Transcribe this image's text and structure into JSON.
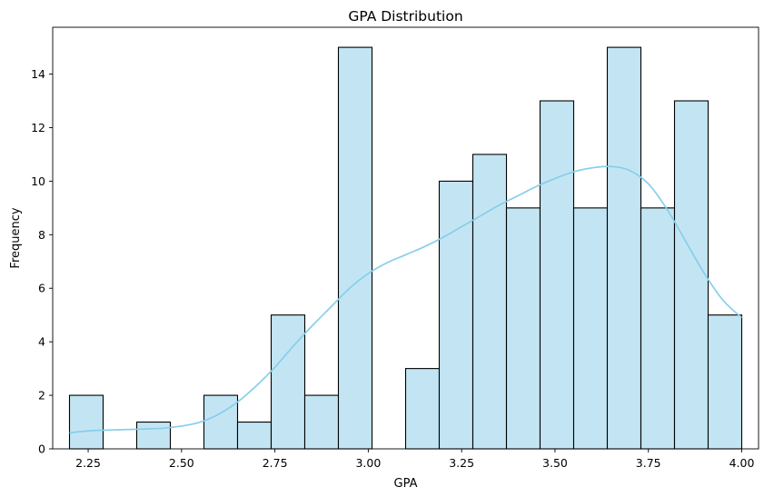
{
  "chart_data": {
    "type": "bar",
    "title": "GPA Distribution",
    "xlabel": "GPA",
    "ylabel": "Frequency",
    "xlim": [
      2.155,
      4.045
    ],
    "ylim": [
      0,
      15.75
    ],
    "grid": false,
    "legend": "none",
    "bar_color": "#c3e5f3",
    "edge_color": "#000000",
    "kde_color": "#87ceeb",
    "x_ticks": [
      {
        "value": 2.25,
        "label": "2.25"
      },
      {
        "value": 2.5,
        "label": "2.50"
      },
      {
        "value": 2.75,
        "label": "2.75"
      },
      {
        "value": 3.0,
        "label": "3.00"
      },
      {
        "value": 3.25,
        "label": "3.25"
      },
      {
        "value": 3.5,
        "label": "3.50"
      },
      {
        "value": 3.75,
        "label": "3.75"
      },
      {
        "value": 4.0,
        "label": "4.00"
      }
    ],
    "y_ticks": [
      {
        "value": 0,
        "label": "0"
      },
      {
        "value": 2,
        "label": "2"
      },
      {
        "value": 4,
        "label": "4"
      },
      {
        "value": 6,
        "label": "6"
      },
      {
        "value": 8,
        "label": "8"
      },
      {
        "value": 10,
        "label": "10"
      },
      {
        "value": 12,
        "label": "12"
      },
      {
        "value": 14,
        "label": "14"
      }
    ],
    "bins": [
      {
        "x0": 2.2,
        "x1": 2.29,
        "count": 2
      },
      {
        "x0": 2.29,
        "x1": 2.38,
        "count": 0
      },
      {
        "x0": 2.38,
        "x1": 2.47,
        "count": 1
      },
      {
        "x0": 2.47,
        "x1": 2.56,
        "count": 0
      },
      {
        "x0": 2.56,
        "x1": 2.65,
        "count": 2
      },
      {
        "x0": 2.65,
        "x1": 2.74,
        "count": 1
      },
      {
        "x0": 2.74,
        "x1": 2.83,
        "count": 5
      },
      {
        "x0": 2.83,
        "x1": 2.92,
        "count": 2
      },
      {
        "x0": 2.92,
        "x1": 3.01,
        "count": 15
      },
      {
        "x0": 3.01,
        "x1": 3.1,
        "count": 0
      },
      {
        "x0": 3.1,
        "x1": 3.19,
        "count": 3
      },
      {
        "x0": 3.19,
        "x1": 3.28,
        "count": 10
      },
      {
        "x0": 3.28,
        "x1": 3.37,
        "count": 11
      },
      {
        "x0": 3.37,
        "x1": 3.46,
        "count": 9
      },
      {
        "x0": 3.46,
        "x1": 3.55,
        "count": 13
      },
      {
        "x0": 3.55,
        "x1": 3.64,
        "count": 9
      },
      {
        "x0": 3.64,
        "x1": 3.73,
        "count": 15
      },
      {
        "x0": 3.73,
        "x1": 3.82,
        "count": 9
      },
      {
        "x0": 3.82,
        "x1": 3.91,
        "count": 13
      },
      {
        "x0": 3.91,
        "x1": 4.0,
        "count": 5
      }
    ],
    "kde": {
      "x": [
        2.2,
        2.25,
        2.3,
        2.35,
        2.4,
        2.45,
        2.5,
        2.55,
        2.6,
        2.65,
        2.7,
        2.75,
        2.8,
        2.85,
        2.9,
        2.95,
        3.0,
        3.05,
        3.1,
        3.15,
        3.2,
        3.25,
        3.3,
        3.35,
        3.4,
        3.45,
        3.5,
        3.55,
        3.6,
        3.65,
        3.7,
        3.75,
        3.8,
        3.85,
        3.9,
        3.95,
        4.0
      ],
      "y": [
        0.6,
        0.67,
        0.7,
        0.72,
        0.74,
        0.77,
        0.85,
        1.0,
        1.3,
        1.75,
        2.35,
        3.05,
        3.85,
        4.6,
        5.3,
        6.0,
        6.55,
        6.95,
        7.25,
        7.55,
        7.9,
        8.3,
        8.7,
        9.1,
        9.45,
        9.8,
        10.1,
        10.35,
        10.5,
        10.55,
        10.4,
        9.9,
        8.95,
        7.75,
        6.55,
        5.55,
        4.9
      ]
    }
  }
}
